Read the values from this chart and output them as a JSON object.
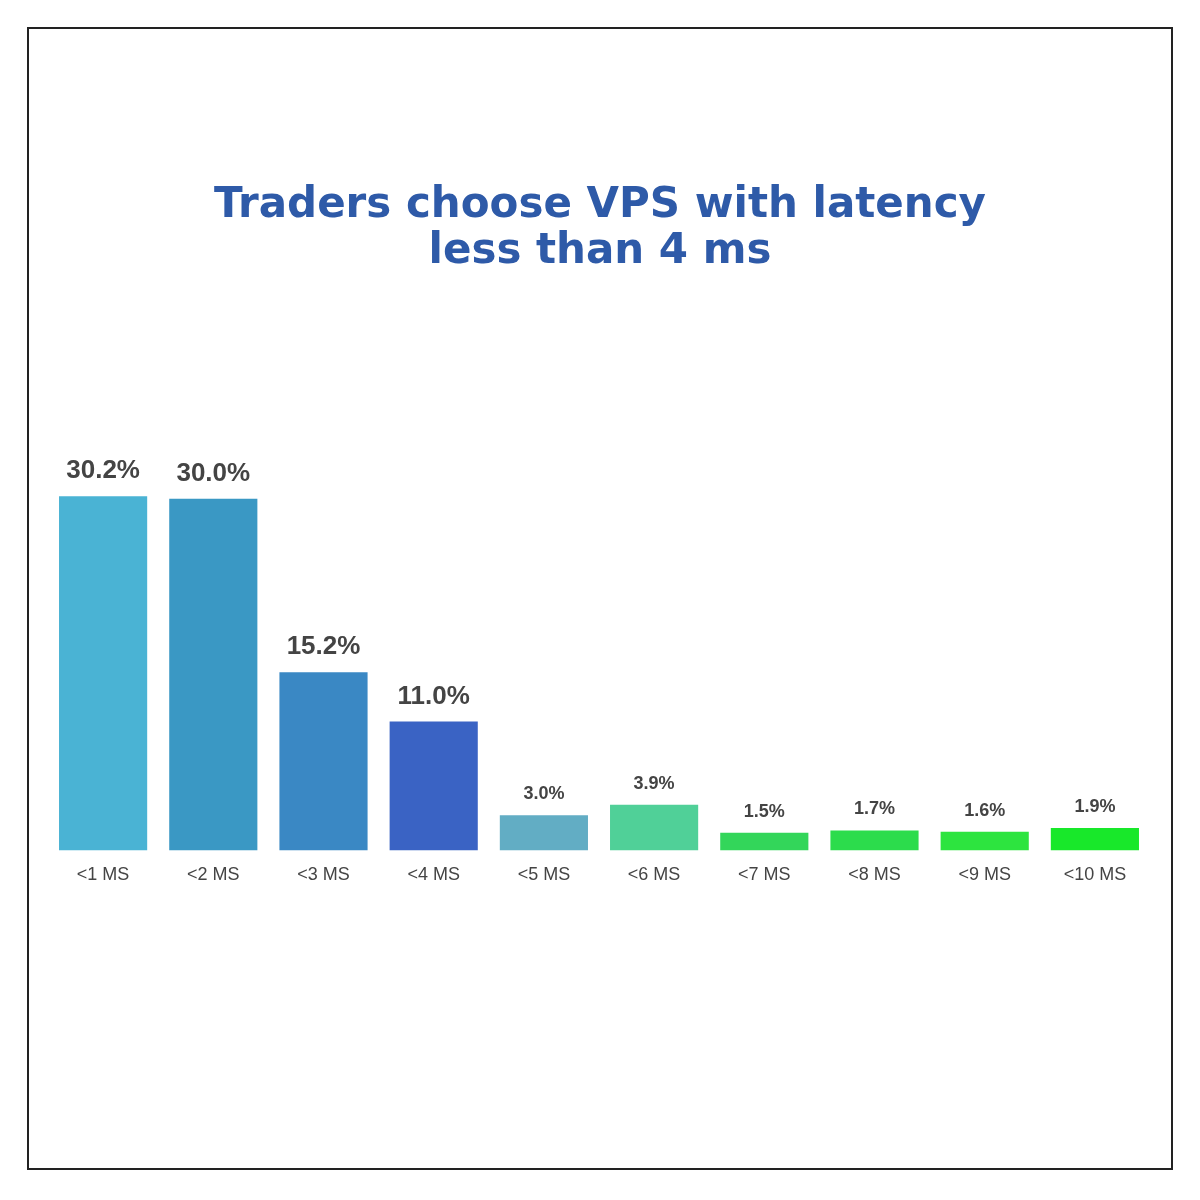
{
  "chart_data": {
    "type": "bar",
    "title": "Traders choose VPS with latency\nless than 4 ms",
    "categories": [
      "<1 MS",
      "<2 MS",
      "<3 MS",
      "<4 MS",
      "<5 MS",
      "<6 MS",
      "<7 MS",
      "<8 MS",
      "<9 MS",
      "<10 MS"
    ],
    "values": [
      30.2,
      30.0,
      15.2,
      11.0,
      3.0,
      3.9,
      1.5,
      1.7,
      1.6,
      1.9
    ],
    "colors": [
      "#4ab3d4",
      "#3a98c4",
      "#3a88c4",
      "#3a63c4",
      "#62adc4",
      "#50d098",
      "#33d65a",
      "#2cdc4c",
      "#2de43f",
      "#18e82a"
    ],
    "value_labels": [
      "30.2%",
      "30.0%",
      "15.2%",
      "11.0%",
      "3.0%",
      "3.9%",
      "1.5%",
      "1.7%",
      "1.6%",
      "1.9%"
    ],
    "tick_labels": "x",
    "grid": false,
    "legend": false
  }
}
